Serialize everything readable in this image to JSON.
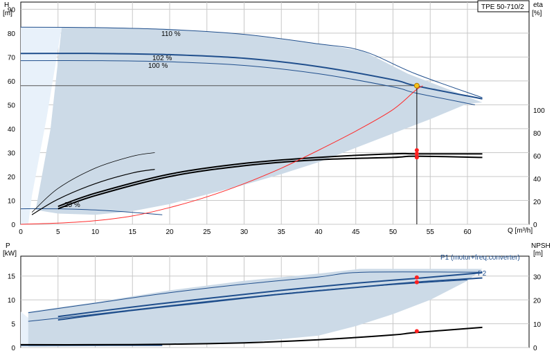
{
  "title": "TPE 50-710/2",
  "chart_data": [
    {
      "type": "line",
      "name": "QH",
      "x_axis": {
        "label": "Q [m³/h]",
        "ticks": [
          0,
          5,
          10,
          15,
          20,
          25,
          30,
          35,
          40,
          45,
          50,
          55,
          60
        ],
        "range": [
          0,
          62
        ]
      },
      "y_left": {
        "label": "H",
        "unit": "[m]",
        "ticks": [
          0,
          10,
          20,
          30,
          40,
          50,
          60,
          70,
          80,
          90
        ],
        "range": [
          0,
          93
        ]
      },
      "y_right": {
        "label": "eta",
        "unit": "[%]",
        "ticks": [
          0,
          20,
          40,
          60,
          80,
          100
        ],
        "range": [
          0,
          100
        ]
      },
      "grid": true,
      "labels": {
        "curve_110": "110 %",
        "curve_102": "102 %",
        "curve_100": "100 %",
        "curve_min": "25 %"
      },
      "envelope": [
        [
          5.5,
          82.5
        ],
        [
          10,
          82.5
        ],
        [
          20,
          81.8
        ],
        [
          30,
          79.5
        ],
        [
          40,
          75.5
        ],
        [
          46,
          72.5
        ],
        [
          52,
          63
        ],
        [
          62,
          51
        ],
        [
          60,
          50.5
        ],
        [
          55,
          44
        ],
        [
          50,
          38
        ],
        [
          45,
          32
        ],
        [
          40,
          26
        ],
        [
          35,
          21
        ],
        [
          30,
          16.5
        ],
        [
          25,
          12.5
        ],
        [
          20,
          8.5
        ],
        [
          15,
          5.5
        ],
        [
          10,
          4
        ],
        [
          5,
          4.5
        ],
        [
          2,
          6
        ],
        [
          4,
          40
        ],
        [
          5.5,
          82.5
        ]
      ],
      "left_region": [
        [
          0,
          82.5
        ],
        [
          5.5,
          82.5
        ],
        [
          3.5,
          45
        ],
        [
          1.5,
          12
        ],
        [
          1,
          0
        ],
        [
          0,
          0
        ]
      ],
      "series": [
        {
          "key": "h110",
          "values": [
            [
              0,
              82.5
            ],
            [
              10,
              82.3
            ],
            [
              20,
              81.5
            ],
            [
              30,
              79.5
            ],
            [
              40,
              75.5
            ],
            [
              46,
              72.5
            ],
            [
              53,
              63
            ],
            [
              62,
              53
            ]
          ]
        },
        {
          "key": "h102",
          "values": [
            [
              0,
              71.5
            ],
            [
              10,
              71.5
            ],
            [
              20,
              71
            ],
            [
              30,
              69.5
            ],
            [
              40,
              66
            ],
            [
              50,
              60.5
            ],
            [
              53,
              58
            ],
            [
              62,
              52.5
            ]
          ]
        },
        {
          "key": "h100",
          "values": [
            [
              0,
              68.5
            ],
            [
              10,
              68.5
            ],
            [
              20,
              68
            ],
            [
              30,
              66.5
            ],
            [
              40,
              63
            ],
            [
              50,
              57.5
            ],
            [
              53,
              55
            ],
            [
              61,
              50
            ]
          ]
        },
        {
          "key": "hmin",
          "values": [
            [
              0,
              6.5
            ],
            [
              5,
              6.5
            ],
            [
              10,
              6
            ],
            [
              15,
              5
            ],
            [
              19,
              4
            ]
          ]
        },
        {
          "key": "eta1",
          "values": [
            [
              1.5,
              5
            ],
            [
              5,
              15
            ],
            [
              10,
              23.5
            ],
            [
              15,
              28.5
            ],
            [
              18,
              30
            ]
          ]
        },
        {
          "key": "eta2",
          "values": [
            [
              1.5,
              4
            ],
            [
              5,
              10.5
            ],
            [
              10,
              17
            ],
            [
              15,
              21.5
            ],
            [
              18,
              23
            ]
          ]
        },
        {
          "key": "eta3",
          "values": [
            [
              5,
              7.5
            ],
            [
              10,
              13
            ],
            [
              20,
              21
            ],
            [
              30,
              25.5
            ],
            [
              40,
              28
            ],
            [
              50,
              29.5
            ],
            [
              53,
              29.5
            ],
            [
              62,
              29.5
            ]
          ]
        },
        {
          "key": "eta4",
          "values": [
            [
              5,
              6.5
            ],
            [
              10,
              12
            ],
            [
              20,
              20
            ],
            [
              30,
              24.5
            ],
            [
              40,
              27
            ],
            [
              50,
              28
            ],
            [
              53,
              28.5
            ],
            [
              62,
              28
            ]
          ]
        },
        {
          "key": "npsh",
          "values": [
            [
              0,
              0
            ],
            [
              5,
              0.5
            ],
            [
              10,
              1.5
            ],
            [
              15,
              3.5
            ],
            [
              20,
              7
            ],
            [
              25,
              11.5
            ],
            [
              30,
              17
            ],
            [
              35,
              23.5
            ],
            [
              40,
              31
            ],
            [
              45,
              39
            ],
            [
              50,
              48
            ],
            [
              53,
              56
            ],
            [
              54,
              58
            ]
          ]
        }
      ],
      "duty_point": {
        "q": 53.2,
        "h": 58
      },
      "eta_points": [
        31,
        29.5,
        28
      ]
    },
    {
      "type": "line",
      "name": "QP",
      "y_left": {
        "label": "P",
        "unit": "[kW]",
        "ticks": [
          0,
          5,
          10,
          15
        ],
        "range": [
          0,
          18.5
        ]
      },
      "y_right": {
        "label": "NPSH",
        "unit": "[m]",
        "ticks": [
          0,
          10,
          20,
          30
        ],
        "range": [
          0,
          37
        ]
      },
      "grid": true,
      "legend": {
        "p1": "P1 (motor+freq.converter)",
        "p2": "P2"
      },
      "envelope": [
        [
          1,
          7.5
        ],
        [
          10,
          9.5
        ],
        [
          20,
          12
        ],
        [
          30,
          14
        ],
        [
          40,
          15.5
        ],
        [
          45.5,
          16.5
        ],
        [
          62,
          16.5
        ],
        [
          60,
          14
        ],
        [
          55,
          10
        ],
        [
          50,
          7
        ],
        [
          45,
          4.5
        ],
        [
          40,
          2.5
        ],
        [
          30,
          1
        ],
        [
          20,
          0.6
        ],
        [
          10,
          0.3
        ],
        [
          3,
          0.2
        ],
        [
          1,
          0.2
        ]
      ],
      "series": [
        {
          "key": "p1a",
          "values": [
            [
              1,
              7.3
            ],
            [
              10,
              9.3
            ],
            [
              20,
              11.5
            ],
            [
              30,
              13.3
            ],
            [
              40,
              14.8
            ],
            [
              46,
              15.8
            ],
            [
              62,
              15.8
            ]
          ]
        },
        {
          "key": "p1b",
          "values": [
            [
              5,
              6.5
            ],
            [
              15,
              8.5
            ],
            [
              25,
              10.3
            ],
            [
              35,
              12
            ],
            [
              45,
              13.5
            ],
            [
              53,
              14.5
            ],
            [
              62,
              15.7
            ]
          ]
        },
        {
          "key": "p2a",
          "values": [
            [
              5,
              5.8
            ],
            [
              15,
              7.8
            ],
            [
              25,
              9.5
            ],
            [
              35,
              11.2
            ],
            [
              45,
              12.6
            ],
            [
              53,
              13.7
            ],
            [
              62,
              14.6
            ]
          ]
        },
        {
          "key": "p2b",
          "values": [
            [
              1,
              5.5
            ],
            [
              10,
              7
            ],
            [
              20,
              8.8
            ],
            [
              30,
              10.5
            ],
            [
              40,
              12
            ],
            [
              50,
              13.2
            ],
            [
              60,
              14.2
            ]
          ]
        },
        {
          "key": "npsh",
          "values": [
            [
              0,
              1.2
            ],
            [
              10,
              1.2
            ],
            [
              20,
              1.4
            ],
            [
              30,
              2
            ],
            [
              40,
              3.3
            ],
            [
              50,
              5.3
            ],
            [
              53,
              6.3
            ],
            [
              62,
              8.5
            ]
          ],
          "axis": "right"
        },
        {
          "key": "pmin",
          "values": [
            [
              0,
              0.5
            ],
            [
              10,
              0.5
            ],
            [
              19,
              0.5
            ]
          ]
        }
      ],
      "points": [
        14.7,
        13.7
      ],
      "npsh_point": 6.9
    }
  ]
}
